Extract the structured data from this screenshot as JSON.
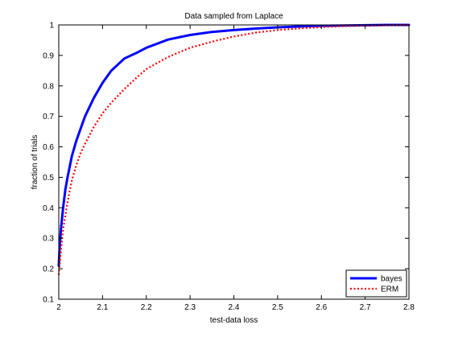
{
  "chart_data": {
    "type": "line",
    "title": "Data sampled from Laplace",
    "xlabel": "test-data loss",
    "ylabel": "fraction of trials",
    "xlim": [
      2.0,
      2.8
    ],
    "ylim": [
      0.1,
      1.0
    ],
    "xticks": [
      "2",
      "2.1",
      "2.2",
      "2.3",
      "2.4",
      "2.5",
      "2.6",
      "2.7",
      "2.8"
    ],
    "yticks": [
      "0.1",
      "0.2",
      "0.3",
      "0.4",
      "0.5",
      "0.6",
      "0.7",
      "0.8",
      "0.9",
      "1"
    ],
    "grid": false,
    "legend_position": "bottom-right",
    "series": [
      {
        "name": "bayes",
        "color": "#0000ff",
        "style": "solid",
        "x": [
          2.0,
          2.002,
          2.005,
          2.01,
          2.015,
          2.02,
          2.03,
          2.04,
          2.05,
          2.06,
          2.08,
          2.1,
          2.12,
          2.15,
          2.18,
          2.2,
          2.25,
          2.3,
          2.35,
          2.4,
          2.45,
          2.5,
          2.55,
          2.6,
          2.65,
          2.7,
          2.75,
          2.8
        ],
        "y": [
          0.21,
          0.27,
          0.33,
          0.4,
          0.46,
          0.5,
          0.57,
          0.62,
          0.66,
          0.7,
          0.76,
          0.81,
          0.85,
          0.89,
          0.91,
          0.925,
          0.952,
          0.967,
          0.977,
          0.983,
          0.988,
          0.992,
          0.995,
          0.997,
          0.998,
          0.999,
          1.0,
          1.0
        ]
      },
      {
        "name": "ERM",
        "color": "#ff0000",
        "style": "dotted",
        "x": [
          2.0,
          2.005,
          2.01,
          2.02,
          2.03,
          2.04,
          2.05,
          2.06,
          2.08,
          2.1,
          2.12,
          2.15,
          2.18,
          2.2,
          2.25,
          2.3,
          2.35,
          2.4,
          2.45,
          2.5,
          2.55,
          2.6,
          2.65,
          2.7,
          2.75,
          2.8
        ],
        "y": [
          0.18,
          0.26,
          0.33,
          0.42,
          0.49,
          0.54,
          0.58,
          0.61,
          0.665,
          0.71,
          0.745,
          0.79,
          0.83,
          0.855,
          0.895,
          0.925,
          0.945,
          0.962,
          0.975,
          0.983,
          0.989,
          0.993,
          0.996,
          0.998,
          0.999,
          1.0
        ]
      }
    ]
  }
}
